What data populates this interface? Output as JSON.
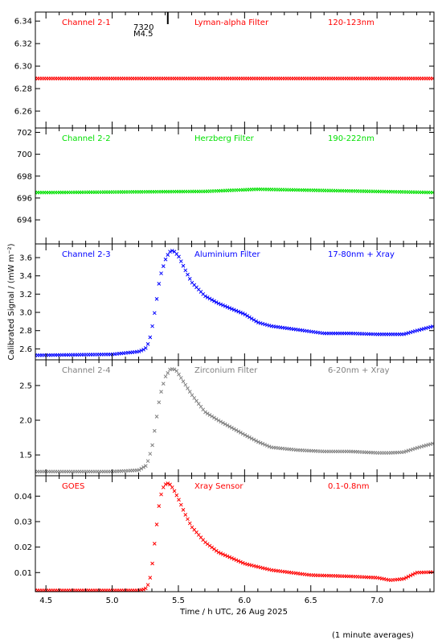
{
  "ylabel": "Calibrated Signal / (mW m⁻²)",
  "xlabel": "Time / h UTC, 26 Aug 2025",
  "footnote": "(1 minute averages)",
  "x_ticks": [
    4.5,
    5.0,
    5.5,
    6.0,
    6.5,
    7.0
  ],
  "x_tick_labels": [
    "4.5",
    "5.0",
    "5.5",
    "6.0",
    "6.5",
    "7.0"
  ],
  "xlim": [
    4.42,
    7.43
  ],
  "flare_marker": {
    "x": 5.42,
    "number": "7320",
    "class": "M4.5"
  },
  "colors": {
    "red": "#ff0000",
    "green": "#00e000",
    "blue": "#0000ff",
    "gray": "#808080"
  },
  "chart_data": [
    {
      "type": "scatter",
      "channel": "Channel 2-1",
      "filter": "Lyman-alpha Filter",
      "band": "120-123nm",
      "color": "#ff0000",
      "ylim": [
        6.245,
        6.348
      ],
      "yticks": [
        6.26,
        6.28,
        6.3,
        6.32,
        6.34
      ],
      "ytick_labels": [
        "6.26",
        "6.28",
        "6.30",
        "6.32",
        "6.34"
      ],
      "series": [
        {
          "x": [
            4.42,
            7.43
          ],
          "y": [
            6.289,
            6.289
          ]
        }
      ]
    },
    {
      "type": "scatter",
      "channel": "Channel 2-2",
      "filter": "Herzberg Filter",
      "band": "190-222nm",
      "color": "#00e000",
      "ylim": [
        691.8,
        702.4
      ],
      "yticks": [
        694,
        696,
        698,
        700,
        702
      ],
      "ytick_labels": [
        "694",
        "696",
        "698",
        "700",
        "702"
      ],
      "series": [
        {
          "x": [
            4.42,
            4.5,
            5.7,
            6.1,
            7.43
          ],
          "y": [
            696.5,
            696.5,
            696.6,
            696.8,
            696.5
          ]
        }
      ]
    },
    {
      "type": "scatter",
      "channel": "Channel 2-3",
      "filter": "Aluminium Filter",
      "band": "17-80nm + Xray",
      "color": "#0000ff",
      "ylim": [
        2.48,
        3.75
      ],
      "yticks": [
        2.6,
        2.8,
        3.0,
        3.2,
        3.4,
        3.6
      ],
      "ytick_labels": [
        "2.6",
        "2.8",
        "3.0",
        "3.2",
        "3.4",
        "3.6"
      ],
      "series": [
        {
          "x": [
            4.42,
            5.0,
            5.2,
            5.25,
            5.28,
            5.3,
            5.33,
            5.36,
            5.4,
            5.43,
            5.46,
            5.5,
            5.55,
            5.6,
            5.7,
            5.8,
            6.0,
            6.1,
            6.2,
            6.4,
            6.6,
            6.8,
            7.0,
            7.2,
            7.3,
            7.43
          ],
          "y": [
            2.53,
            2.54,
            2.57,
            2.6,
            2.68,
            2.82,
            3.08,
            3.38,
            3.57,
            3.66,
            3.68,
            3.62,
            3.47,
            3.33,
            3.18,
            3.1,
            2.98,
            2.89,
            2.85,
            2.81,
            2.77,
            2.77,
            2.76,
            2.76,
            2.8,
            2.85
          ]
        }
      ]
    },
    {
      "type": "scatter",
      "channel": "Channel 2-4",
      "filter": "Zirconium Filter",
      "band": "6-20nm + Xray",
      "color": "#808080",
      "ylim": [
        1.2,
        2.87
      ],
      "yticks": [
        1.5,
        2.0,
        2.5
      ],
      "ytick_labels": [
        "1.5",
        "2.0",
        "2.5"
      ],
      "series": [
        {
          "x": [
            4.42,
            5.0,
            5.2,
            5.26,
            5.3,
            5.33,
            5.36,
            5.4,
            5.44,
            5.48,
            5.53,
            5.6,
            5.7,
            5.8,
            6.0,
            6.1,
            6.2,
            6.4,
            6.6,
            6.8,
            7.0,
            7.1,
            7.2,
            7.3,
            7.43
          ],
          "y": [
            1.26,
            1.26,
            1.28,
            1.35,
            1.6,
            1.97,
            2.34,
            2.62,
            2.74,
            2.73,
            2.58,
            2.37,
            2.12,
            2.0,
            1.79,
            1.69,
            1.61,
            1.57,
            1.55,
            1.55,
            1.53,
            1.53,
            1.54,
            1.6,
            1.67
          ]
        }
      ]
    },
    {
      "type": "scatter",
      "channel": "GOES",
      "filter": "Xray Sensor",
      "band": "0.1-0.8nm",
      "color": "#ff0000",
      "ylim": [
        0.0025,
        0.048
      ],
      "yticks": [
        0.01,
        0.02,
        0.03,
        0.04
      ],
      "ytick_labels": [
        "0.01",
        "0.02",
        "0.03",
        "0.04"
      ],
      "series": [
        {
          "x": [
            4.42,
            5.2,
            5.25,
            5.28,
            5.3,
            5.33,
            5.36,
            5.39,
            5.41,
            5.43,
            5.46,
            5.5,
            5.55,
            5.6,
            5.7,
            5.8,
            6.0,
            6.2,
            6.5,
            6.8,
            7.0,
            7.1,
            7.2,
            7.3,
            7.43
          ],
          "y": [
            0.003,
            0.003,
            0.0035,
            0.006,
            0.012,
            0.026,
            0.039,
            0.044,
            0.045,
            0.045,
            0.043,
            0.039,
            0.033,
            0.028,
            0.022,
            0.018,
            0.0135,
            0.011,
            0.009,
            0.0085,
            0.008,
            0.007,
            0.0075,
            0.01,
            0.0102
          ]
        }
      ]
    }
  ]
}
